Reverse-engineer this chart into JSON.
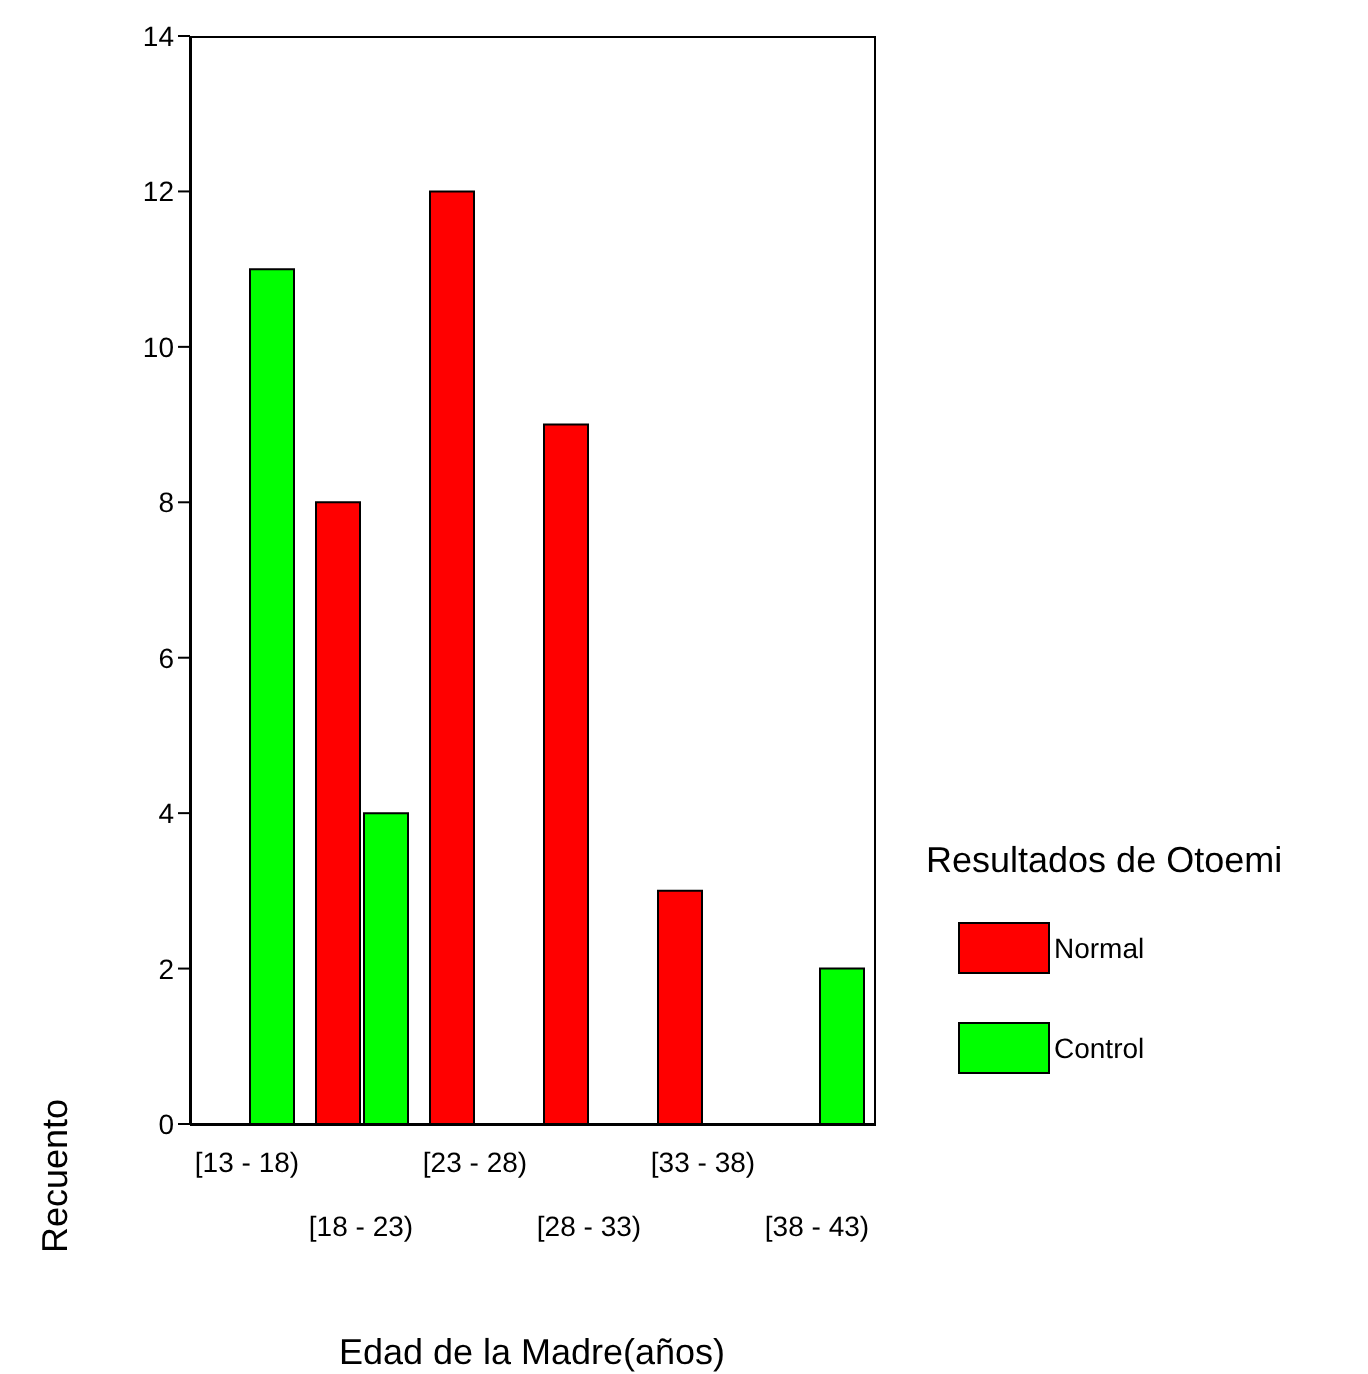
{
  "chart_data": {
    "type": "bar",
    "xlabel": "Edad de la Madre(años)",
    "ylabel": "Recuento",
    "legend_title": "Resultados de Otoemi",
    "categories": [
      "[13 - 18)",
      "[18 - 23)",
      "[23 - 28)",
      "[28 - 33)",
      "[33 - 38)",
      "[38 - 43)"
    ],
    "series": [
      {
        "name": "Normal",
        "color": "#ff0000",
        "values": [
          0,
          8,
          12,
          9,
          3,
          0
        ]
      },
      {
        "name": "Control",
        "color": "#00ff00",
        "values": [
          11,
          4,
          0,
          0,
          0,
          2
        ]
      }
    ],
    "ylim": [
      0,
      14
    ],
    "yticks": [
      0,
      2,
      4,
      6,
      8,
      10,
      12,
      14
    ],
    "legend": "right"
  }
}
